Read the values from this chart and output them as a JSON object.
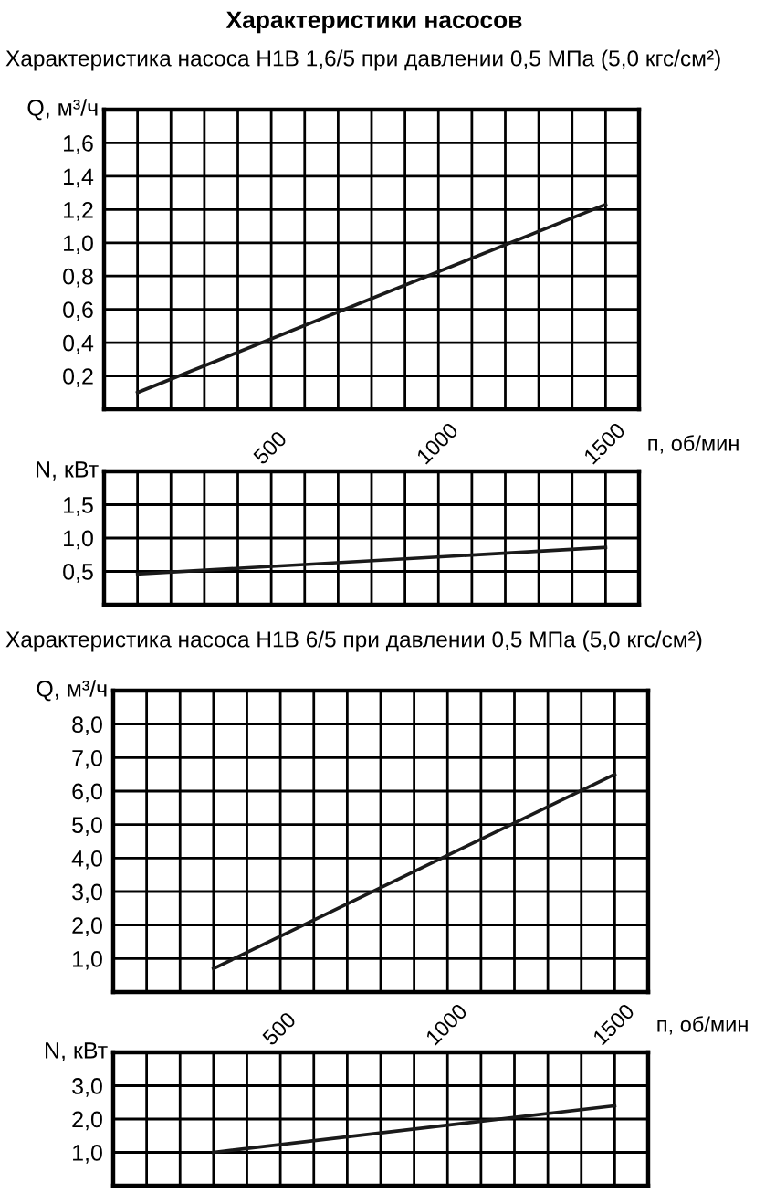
{
  "chart_data": [
    {
      "type": "line",
      "title": "Характеристики насосов",
      "subtitle": "Характеристика насоса Н1В 1,6/5 при давлении 0,5 МПа (5,0 кгс/см²)",
      "ylabel": "Q, м³/ч",
      "x": [
        100,
        1500
      ],
      "series": [
        {
          "color": "#1a1a1a",
          "values": [
            0.1,
            1.23
          ]
        }
      ],
      "xlim": [
        0,
        1600
      ],
      "ylim": [
        0,
        1.8
      ],
      "xticks": [
        {
          "value": 100,
          "label": null
        },
        {
          "value": 200,
          "label": null
        },
        {
          "value": 300,
          "label": null
        },
        {
          "value": 400,
          "label": null
        },
        500,
        {
          "value": 600,
          "label": null
        },
        {
          "value": 700,
          "label": null
        },
        {
          "value": 800,
          "label": null
        },
        {
          "value": 900,
          "label": null
        },
        1000,
        {
          "value": 1100,
          "label": null
        },
        {
          "value": 1200,
          "label": null
        },
        {
          "value": 1300,
          "label": null
        },
        {
          "value": 1400,
          "label": null
        },
        1500
      ],
      "yticks": [
        {
          "value": 0.2,
          "label": "0,2"
        },
        {
          "value": 0.4,
          "label": "0,4"
        },
        {
          "value": 0.6,
          "label": "0,6"
        },
        {
          "value": 0.8,
          "label": "0,8"
        },
        {
          "value": 1.0,
          "label": "1,0"
        },
        {
          "value": 1.2,
          "label": "1,2"
        },
        {
          "value": 1.4,
          "label": "1,4"
        },
        {
          "value": 1.6,
          "label": "1,6"
        }
      ],
      "tick_labels": "y",
      "grid": true,
      "marker": "none",
      "line_style": "solid"
    },
    {
      "type": "line",
      "xlabel": "п, об/мин",
      "ylabel": "N, кВт",
      "x": [
        100,
        1500
      ],
      "series": [
        {
          "color": "#1a1a1a",
          "values": [
            0.46,
            0.86
          ]
        }
      ],
      "xlim": [
        0,
        1600
      ],
      "ylim": [
        0,
        2.0
      ],
      "xticks": [
        {
          "value": 100,
          "label": null
        },
        {
          "value": 200,
          "label": null
        },
        {
          "value": 300,
          "label": null
        },
        {
          "value": 400,
          "label": null
        },
        500,
        {
          "value": 600,
          "label": null
        },
        {
          "value": 700,
          "label": null
        },
        {
          "value": 800,
          "label": null
        },
        {
          "value": 900,
          "label": null
        },
        1000,
        {
          "value": 1100,
          "label": null
        },
        {
          "value": 1200,
          "label": null
        },
        {
          "value": 1300,
          "label": null
        },
        {
          "value": 1400,
          "label": null
        },
        1500
      ],
      "yticks": [
        {
          "value": 0.5,
          "label": "0,5"
        },
        {
          "value": 1.0,
          "label": "1,0"
        },
        {
          "value": 1.5,
          "label": "1,5"
        }
      ],
      "grid": true,
      "marker": "none",
      "line_style": "solid"
    },
    {
      "type": "line",
      "subtitle": "Характеристика насоса Н1В 6/5 при давлении 0,5 МПа (5,0 кгс/см²)",
      "ylabel": "Q, м³/ч",
      "x": [
        300,
        1500
      ],
      "series": [
        {
          "color": "#1a1a1a",
          "values": [
            0.7,
            6.5
          ]
        }
      ],
      "xlim": [
        0,
        1600
      ],
      "ylim": [
        0,
        9.0
      ],
      "xticks": [
        {
          "value": 100,
          "label": null
        },
        {
          "value": 200,
          "label": null
        },
        {
          "value": 300,
          "label": null
        },
        {
          "value": 400,
          "label": null
        },
        500,
        {
          "value": 600,
          "label": null
        },
        {
          "value": 700,
          "label": null
        },
        {
          "value": 800,
          "label": null
        },
        {
          "value": 900,
          "label": null
        },
        1000,
        {
          "value": 1100,
          "label": null
        },
        {
          "value": 1200,
          "label": null
        },
        {
          "value": 1300,
          "label": null
        },
        {
          "value": 1400,
          "label": null
        },
        1500
      ],
      "yticks": [
        {
          "value": 1,
          "label": "1,0"
        },
        {
          "value": 2,
          "label": "2,0"
        },
        {
          "value": 3,
          "label": "3,0"
        },
        {
          "value": 4,
          "label": "4,0"
        },
        {
          "value": 5,
          "label": "5,0"
        },
        {
          "value": 6,
          "label": "6,0"
        },
        {
          "value": 7,
          "label": "7,0"
        },
        {
          "value": 8,
          "label": "8,0"
        }
      ],
      "tick_labels": "y",
      "grid": true,
      "marker": "none",
      "line_style": "solid"
    },
    {
      "type": "line",
      "xlabel": "п, об/мин",
      "ylabel": "N, кВт",
      "x": [
        300,
        1500
      ],
      "series": [
        {
          "color": "#1a1a1a",
          "values": [
            1.0,
            2.4
          ]
        }
      ],
      "xlim": [
        0,
        1600
      ],
      "ylim": [
        0,
        4.0
      ],
      "xticks": [
        {
          "value": 100,
          "label": null
        },
        {
          "value": 200,
          "label": null
        },
        {
          "value": 300,
          "label": null
        },
        {
          "value": 400,
          "label": null
        },
        500,
        {
          "value": 600,
          "label": null
        },
        {
          "value": 700,
          "label": null
        },
        {
          "value": 800,
          "label": null
        },
        {
          "value": 900,
          "label": null
        },
        1000,
        {
          "value": 1100,
          "label": null
        },
        {
          "value": 1200,
          "label": null
        },
        {
          "value": 1300,
          "label": null
        },
        {
          "value": 1400,
          "label": null
        },
        1500
      ],
      "yticks": [
        {
          "value": 1,
          "label": "1,0"
        },
        {
          "value": 2,
          "label": "2,0"
        },
        {
          "value": 3,
          "label": "3,0"
        }
      ],
      "grid": true,
      "marker": "none",
      "line_style": "solid"
    }
  ]
}
